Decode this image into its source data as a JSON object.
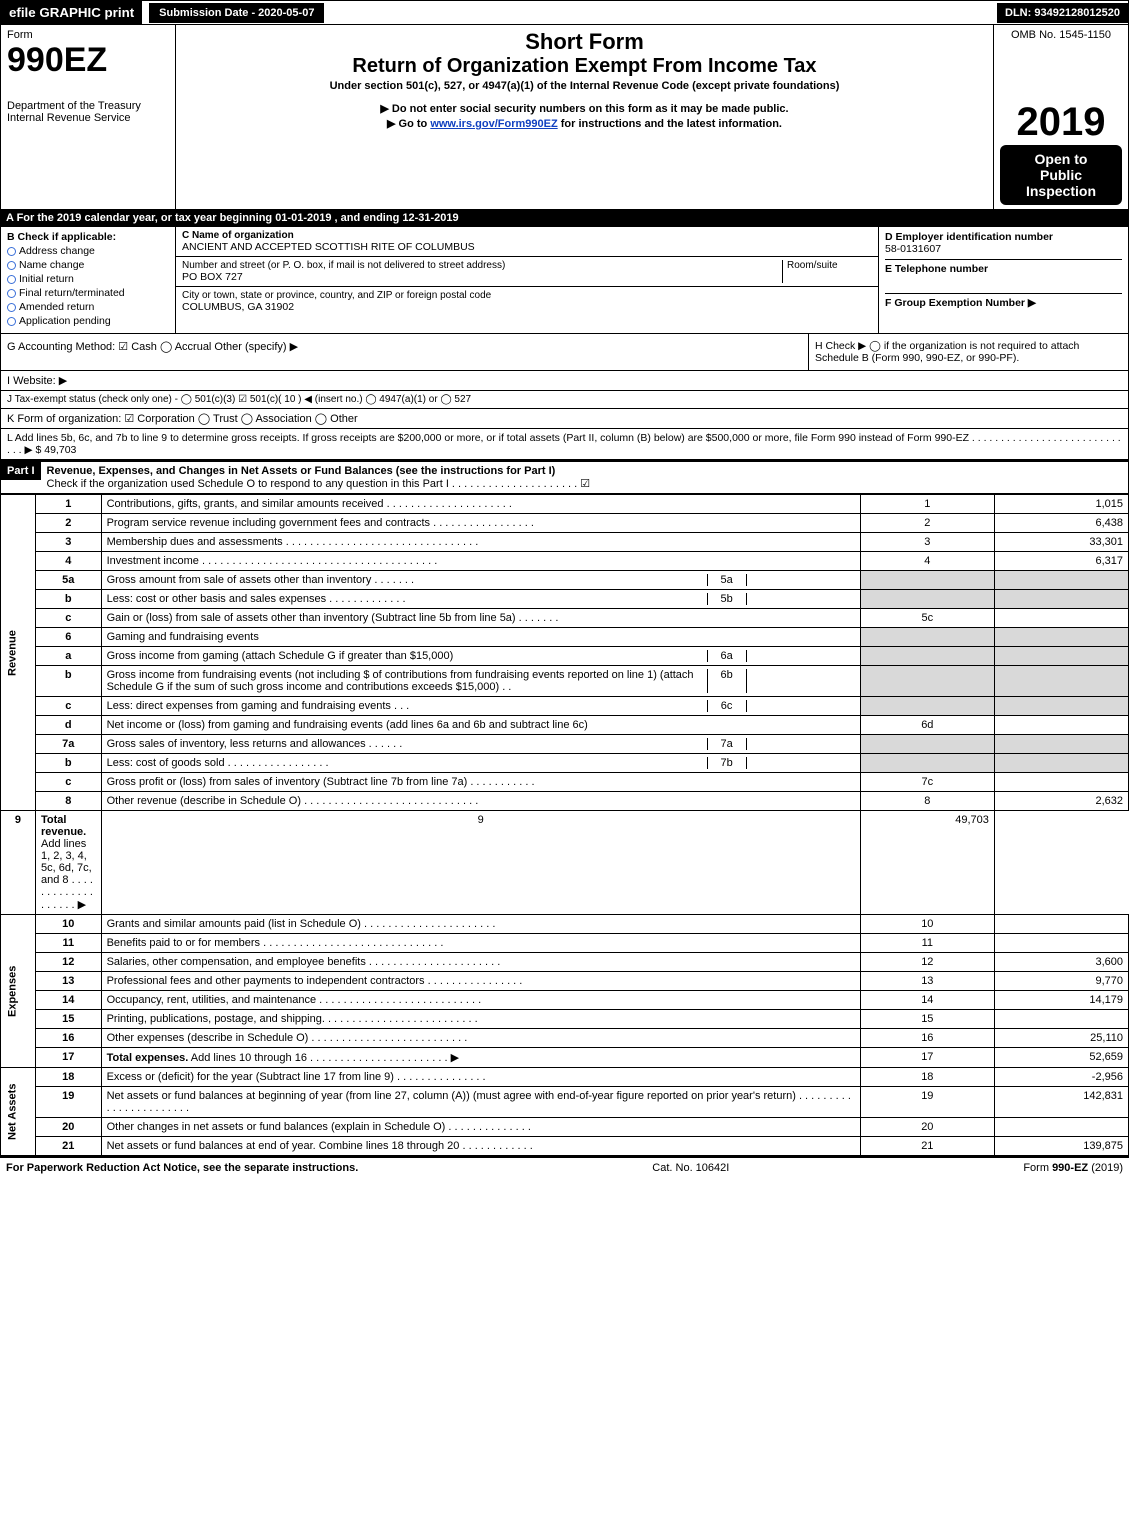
{
  "topbar": {
    "print": "efile GRAPHIC print",
    "submission": "Submission Date - 2020-05-07",
    "dln": "DLN: 93492128012520"
  },
  "header": {
    "form_label": "Form",
    "form_number": "990EZ",
    "dept1": "Department of the Treasury",
    "dept2": "Internal Revenue Service",
    "short_form": "Short Form",
    "title": "Return of Organization Exempt From Income Tax",
    "subtitle": "Under section 501(c), 527, or 4947(a)(1) of the Internal Revenue Code (except private foundations)",
    "warn": "▶ Do not enter social security numbers on this form as it may be made public.",
    "goto_pre": "▶ Go to ",
    "goto_link": "www.irs.gov/Form990EZ",
    "goto_post": " for instructions and the latest information.",
    "omb": "OMB No. 1545-1150",
    "year": "2019",
    "open1": "Open to",
    "open2": "Public",
    "open3": "Inspection"
  },
  "period": "A  For the 2019 calendar year, or tax year beginning 01-01-2019 , and ending 12-31-2019",
  "boxB": {
    "title": "B  Check if applicable:",
    "items": [
      "Address change",
      "Name change",
      "Initial return",
      "Final return/terminated",
      "Amended return",
      "Application pending"
    ]
  },
  "boxC": {
    "label": "C Name of organization",
    "name": "ANCIENT AND ACCEPTED SCOTTISH RITE OF COLUMBUS",
    "street_label": "Number and street (or P. O. box, if mail is not delivered to street address)",
    "room_label": "Room/suite",
    "street": "PO BOX 727",
    "city_label": "City or town, state or province, country, and ZIP or foreign postal code",
    "city": "COLUMBUS, GA  31902"
  },
  "boxD": {
    "label": "D Employer identification number",
    "ein": "58-0131607",
    "phone_label": "E Telephone number",
    "group_label": "F Group Exemption Number  ▶"
  },
  "lineG": "G Accounting Method:   ☑ Cash  ◯ Accrual   Other (specify) ▶",
  "lineH": "H   Check ▶  ◯ if the organization is not required to attach Schedule B (Form 990, 990-EZ, or 990-PF).",
  "lineI": "I Website: ▶",
  "lineJ": "J Tax-exempt status (check only one) -  ◯ 501(c)(3)  ☑ 501(c)( 10 ) ◀ (insert no.)  ◯ 4947(a)(1) or  ◯ 527",
  "lineK": "K Form of organization:   ☑ Corporation  ◯ Trust  ◯ Association  ◯ Other",
  "lineL": "L Add lines 5b, 6c, and 7b to line 9 to determine gross receipts. If gross receipts are $200,000 or more, or if total assets (Part II, column (B) below) are $500,000 or more, file Form 990 instead of Form 990-EZ  . . . . . . . . . . . . . . . . . . . . . . . . . . . . .  ▶ $ 49,703",
  "part1": {
    "label": "Part I",
    "title": "Revenue, Expenses, and Changes in Net Assets or Fund Balances (see the instructions for Part I)",
    "sub": "Check if the organization used Schedule O to respond to any question in this Part I . . . . . . . . . . . . . . . . . . . . .  ☑",
    "sections": {
      "revenue": "Revenue",
      "expenses": "Expenses",
      "netassets": "Net Assets"
    },
    "rows": [
      {
        "n": "1",
        "d": "Contributions, gifts, grants, and similar amounts received . . . . . . . . . . . . . . . . . . . . .",
        "ln": "1",
        "v": "1,015"
      },
      {
        "n": "2",
        "d": "Program service revenue including government fees and contracts . . . . . . . . . . . . . . . . .",
        "ln": "2",
        "v": "6,438"
      },
      {
        "n": "3",
        "d": "Membership dues and assessments . . . . . . . . . . . . . . . . . . . . . . . . . . . . . . . .",
        "ln": "3",
        "v": "33,301"
      },
      {
        "n": "4",
        "d": "Investment income . . . . . . . . . . . . . . . . . . . . . . . . . . . . . . . . . . . . . . .",
        "ln": "4",
        "v": "6,317"
      },
      {
        "n": "5a",
        "d": "Gross amount from sale of assets other than inventory . . . . . . .",
        "sub": "5a",
        "shade": true
      },
      {
        "n": "b",
        "d": "Less: cost or other basis and sales expenses . . . . . . . . . . . . .",
        "sub": "5b",
        "shade": true
      },
      {
        "n": "c",
        "d": "Gain or (loss) from sale of assets other than inventory (Subtract line 5b from line 5a) . . . . . . .",
        "ln": "5c",
        "v": ""
      },
      {
        "n": "6",
        "d": "Gaming and fundraising events",
        "shade": true,
        "norow": true
      },
      {
        "n": "a",
        "d": "Gross income from gaming (attach Schedule G if greater than $15,000)",
        "sub": "6a",
        "shade": true
      },
      {
        "n": "b",
        "d": "Gross income from fundraising events (not including $                         of contributions from fundraising events reported on line 1) (attach Schedule G if the sum of such gross income and contributions exceeds $15,000)    . .",
        "sub": "6b",
        "shade": true
      },
      {
        "n": "c",
        "d": "Less: direct expenses from gaming and fundraising events     . . .",
        "sub": "6c",
        "shade": true
      },
      {
        "n": "d",
        "d": "Net income or (loss) from gaming and fundraising events (add lines 6a and 6b and subtract line 6c)",
        "ln": "6d",
        "v": ""
      },
      {
        "n": "7a",
        "d": "Gross sales of inventory, less returns and allowances . . . . . .",
        "sub": "7a",
        "shade": true
      },
      {
        "n": "b",
        "d": "Less: cost of goods sold           . . . . . . . . . . . . . . . . .",
        "sub": "7b",
        "shade": true
      },
      {
        "n": "c",
        "d": "Gross profit or (loss) from sales of inventory (Subtract line 7b from line 7a) . . . . . . . . . . .",
        "ln": "7c",
        "v": ""
      },
      {
        "n": "8",
        "d": "Other revenue (describe in Schedule O) . . . . . . . . . . . . . . . . . . . . . . . . . . . . .",
        "ln": "8",
        "v": "2,632"
      },
      {
        "n": "9",
        "d": "Total revenue. Add lines 1, 2, 3, 4, 5c, 6d, 7c, and 8  . . . . . . . . . . . . . . . . . . .   ▶",
        "ln": "9",
        "v": "49,703",
        "bold": true
      }
    ],
    "exp_rows": [
      {
        "n": "10",
        "d": "Grants and similar amounts paid (list in Schedule O) . . . . . . . . . . . . . . . . . . . . . .",
        "ln": "10",
        "v": ""
      },
      {
        "n": "11",
        "d": "Benefits paid to or for members     . . . . . . . . . . . . . . . . . . . . . . . . . . . . . .",
        "ln": "11",
        "v": ""
      },
      {
        "n": "12",
        "d": "Salaries, other compensation, and employee benefits . . . . . . . . . . . . . . . . . . . . . .",
        "ln": "12",
        "v": "3,600"
      },
      {
        "n": "13",
        "d": "Professional fees and other payments to independent contractors . . . . . . . . . . . . . . . .",
        "ln": "13",
        "v": "9,770"
      },
      {
        "n": "14",
        "d": "Occupancy, rent, utilities, and maintenance . . . . . . . . . . . . . . . . . . . . . . . . . . .",
        "ln": "14",
        "v": "14,179"
      },
      {
        "n": "15",
        "d": "Printing, publications, postage, and shipping. . . . . . . . . . . . . . . . . . . . . . . . . .",
        "ln": "15",
        "v": ""
      },
      {
        "n": "16",
        "d": "Other expenses (describe in Schedule O)     . . . . . . . . . . . . . . . . . . . . . . . . . .",
        "ln": "16",
        "v": "25,110"
      },
      {
        "n": "17",
        "d": "Total expenses. Add lines 10 through 16     . . . . . . . . . . . . . . . . . . . . . . .   ▶",
        "ln": "17",
        "v": "52,659",
        "bold": true
      }
    ],
    "net_rows": [
      {
        "n": "18",
        "d": "Excess or (deficit) for the year (Subtract line 17 from line 9)        . . . . . . . . . . . . . . .",
        "ln": "18",
        "v": "-2,956"
      },
      {
        "n": "19",
        "d": "Net assets or fund balances at beginning of year (from line 27, column (A)) (must agree with end-of-year figure reported on prior year's return) . . . . . . . . . . . . . . . . . . . . . . .",
        "ln": "19",
        "v": "142,831"
      },
      {
        "n": "20",
        "d": "Other changes in net assets or fund balances (explain in Schedule O) . . . . . . . . . . . . . .",
        "ln": "20",
        "v": ""
      },
      {
        "n": "21",
        "d": "Net assets or fund balances at end of year. Combine lines 18 through 20 . . . . . . . . . . . .",
        "ln": "21",
        "v": "139,875"
      }
    ]
  },
  "footer": {
    "left": "For Paperwork Reduction Act Notice, see the separate instructions.",
    "mid": "Cat. No. 10642I",
    "right_pre": "Form ",
    "right_bold": "990-EZ",
    "right_post": " (2019)"
  }
}
